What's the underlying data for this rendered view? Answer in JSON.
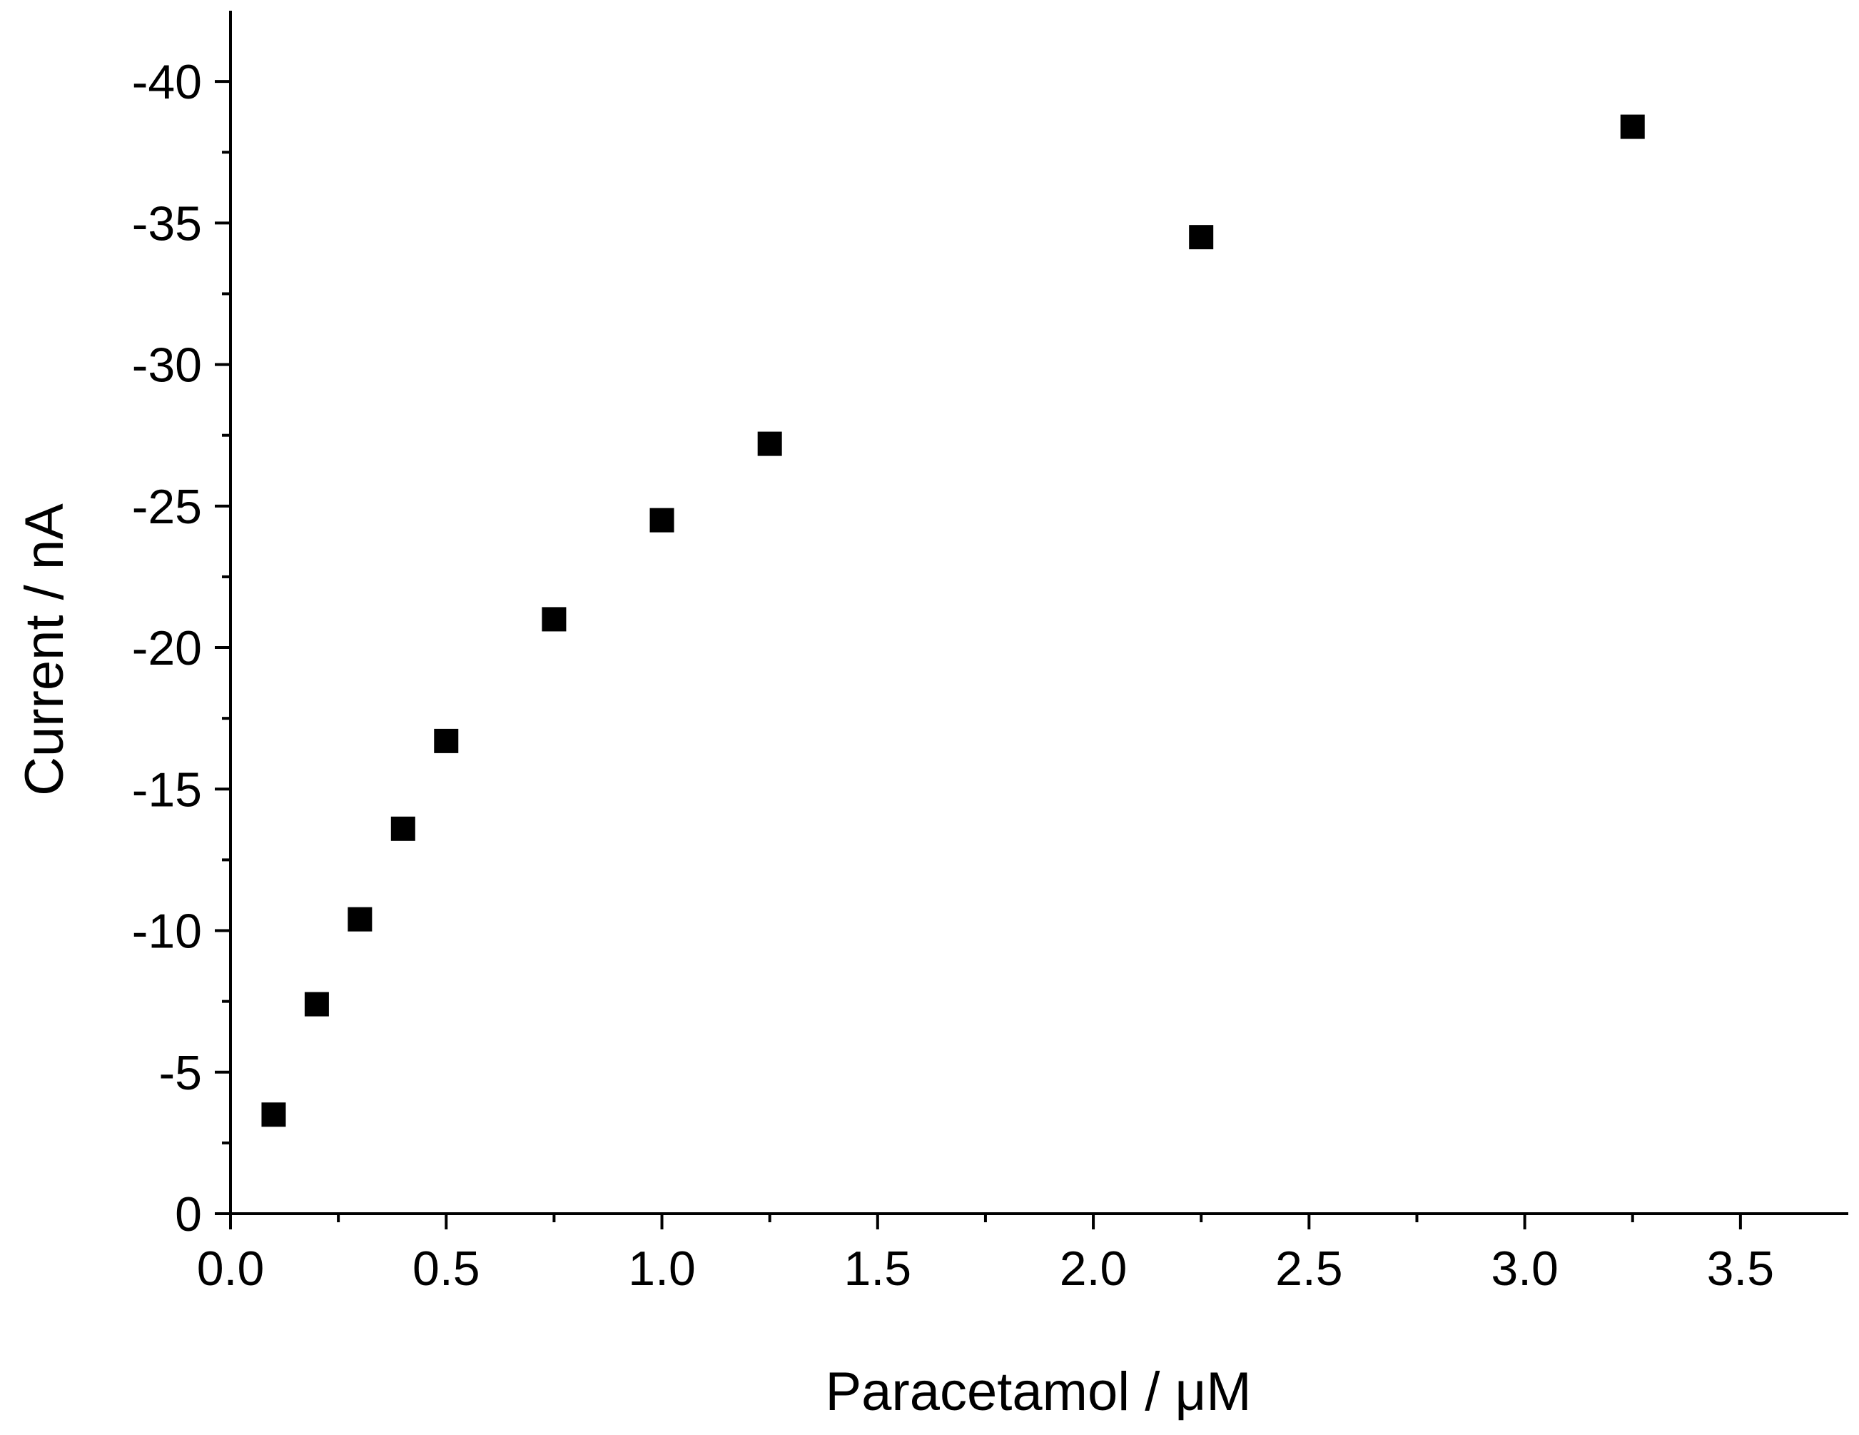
{
  "chart_data": {
    "type": "scatter",
    "title": "",
    "xlabel": "Paracetamol / μM",
    "ylabel": "Current / nA",
    "xlim": [
      0.0,
      3.75
    ],
    "ylim": [
      0,
      -42.5
    ],
    "y_reversed": true,
    "grid": false,
    "legend": "none",
    "x_ticks": [
      "0.0",
      "0.5",
      "1.0",
      "1.5",
      "2.0",
      "2.5",
      "3.0",
      "3.5"
    ],
    "x_tick_values": [
      0.0,
      0.5,
      1.0,
      1.5,
      2.0,
      2.5,
      3.0,
      3.5
    ],
    "y_ticks": [
      "0",
      "-5",
      "-10",
      "-15",
      "-20",
      "-25",
      "-30",
      "-35",
      "-40"
    ],
    "y_tick_values": [
      0,
      -5,
      -10,
      -15,
      -20,
      -25,
      -30,
      -35,
      -40
    ],
    "marker": "square",
    "marker_color": "#000000",
    "series": [
      {
        "x": [
          0.1,
          0.2,
          0.3,
          0.4,
          0.5,
          0.75,
          1.0,
          1.25,
          2.25,
          3.25
        ],
        "y": [
          -3.5,
          -7.4,
          -10.4,
          -13.6,
          -16.7,
          -21.0,
          -24.5,
          -27.2,
          -34.5,
          -38.4
        ]
      }
    ]
  }
}
